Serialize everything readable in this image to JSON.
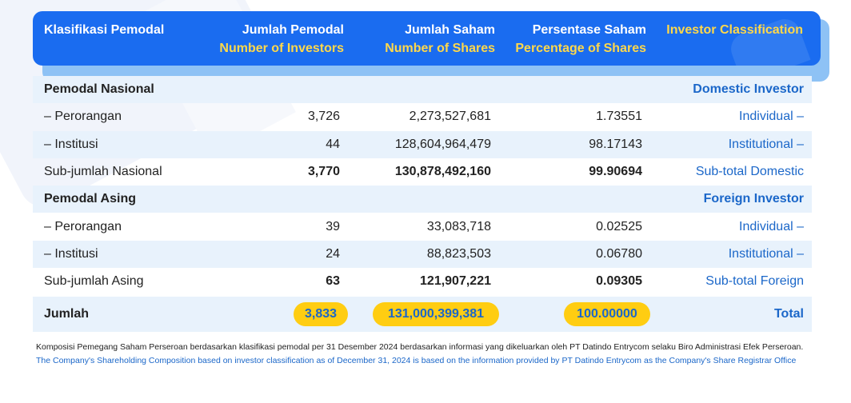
{
  "header": {
    "col0": {
      "line1": "Klasifikasi Pemodal"
    },
    "col1": {
      "line1": "Jumlah Pemodal",
      "line2": "Number of Investors"
    },
    "col2": {
      "line1": "Jumlah Saham",
      "line2": "Number of Shares"
    },
    "col3": {
      "line1": "Persentase Saham",
      "line2": "Percentage of Shares"
    },
    "col4": {
      "line1": "Investor Classification"
    }
  },
  "rows": [
    {
      "type": "section",
      "label": "Pemodal Nasional",
      "investors": "",
      "shares": "",
      "percentage": "",
      "classification": "Domestic Investor"
    },
    {
      "type": "item",
      "label": "– Perorangan",
      "investors": "3,726",
      "shares": "2,273,527,681",
      "percentage": "1.73551",
      "classification": "Individual –"
    },
    {
      "type": "item",
      "label": "– Institusi",
      "investors": "44",
      "shares": "128,604,964,479",
      "percentage": "98.17143",
      "classification": "Institutional –"
    },
    {
      "type": "subtotal",
      "label": "Sub-jumlah Nasional",
      "investors": "3,770",
      "shares": "130,878,492,160",
      "percentage": "99.90694",
      "classification": "Sub-total Domestic"
    },
    {
      "type": "section",
      "label": "Pemodal Asing",
      "investors": "",
      "shares": "",
      "percentage": "",
      "classification": "Foreign Investor"
    },
    {
      "type": "item",
      "label": "– Perorangan",
      "investors": "39",
      "shares": "33,083,718",
      "percentage": "0.02525",
      "classification": "Individual –"
    },
    {
      "type": "item",
      "label": "– Institusi",
      "investors": "24",
      "shares": "88,823,503",
      "percentage": "0.06780",
      "classification": "Institutional –"
    },
    {
      "type": "subtotal",
      "label": "Sub-jumlah Asing",
      "investors": "63",
      "shares": "121,907,221",
      "percentage": "0.09305",
      "classification": "Sub-total Foreign"
    }
  ],
  "total": {
    "label": "Jumlah",
    "investors": "3,833",
    "shares": "131,000,399,381",
    "percentage": "100.00000",
    "classification": "Total"
  },
  "notes": {
    "id": "Komposisi Pemegang Saham Perseroan berdasarkan klasifikasi pemodal per 31 Desember 2024 berdasarkan informasi yang dikeluarkan oleh PT Datindo Entrycom selaku Biro Administrasi Efek Perseroan.",
    "en": "The Company's Shareholding Composition based on investor classification as of December 31, 2024 is based on the information provided by PT Datindo Entrycom as the Company's Share Registrar Office"
  },
  "colors": {
    "header_bg": "#1a6cf0",
    "header_yellow": "#ffd84a",
    "accent_blue": "#1b67c9",
    "pill": "#ffcd12",
    "row_alt": "#e8f2fc"
  }
}
